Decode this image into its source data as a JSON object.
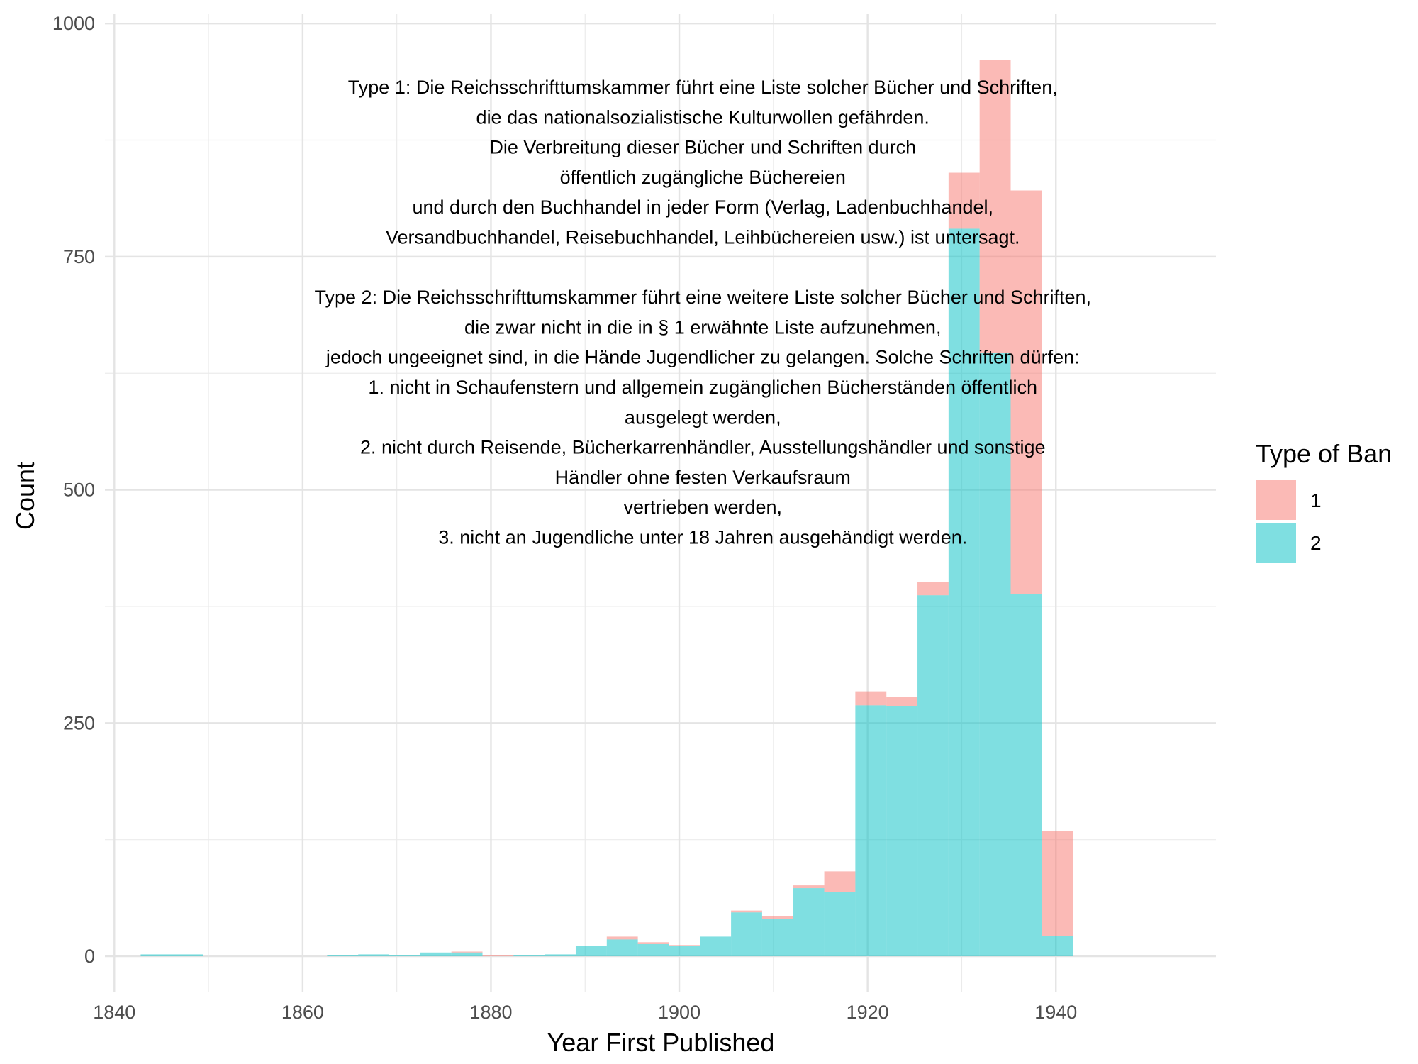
{
  "chart_data": {
    "type": "bar",
    "stacked": true,
    "xlabel": "Year First Published",
    "ylabel": "Count",
    "xlim": [
      1839,
      1957
    ],
    "ylim": [
      -38,
      1010
    ],
    "x_ticks": [
      1840,
      1860,
      1880,
      1900,
      1920,
      1940
    ],
    "y_ticks": [
      0,
      250,
      500,
      750,
      1000
    ],
    "grid": true,
    "legend": {
      "title": "Type of Ban",
      "position": "right",
      "entries": [
        {
          "label": "1",
          "color": "#F8766D"
        },
        {
          "label": "2",
          "color": "#00BFC4"
        }
      ]
    },
    "bin_width": 3.3,
    "bins": [
      {
        "start": 1842.8,
        "end": 1846.1,
        "type2": 2,
        "type1": 0
      },
      {
        "start": 1846.1,
        "end": 1849.4,
        "type2": 2,
        "type1": 0
      },
      {
        "start": 1862.6,
        "end": 1865.9,
        "type2": 1,
        "type1": 0
      },
      {
        "start": 1865.9,
        "end": 1869.2,
        "type2": 2,
        "type1": 0
      },
      {
        "start": 1869.2,
        "end": 1872.5,
        "type2": 1,
        "type1": 0
      },
      {
        "start": 1872.5,
        "end": 1875.8,
        "type2": 4,
        "type1": 0
      },
      {
        "start": 1875.8,
        "end": 1879.1,
        "type2": 4,
        "type1": 1
      },
      {
        "start": 1879.1,
        "end": 1882.4,
        "type2": 0,
        "type1": 1
      },
      {
        "start": 1882.4,
        "end": 1885.7,
        "type2": 1,
        "type1": 0
      },
      {
        "start": 1885.7,
        "end": 1889.0,
        "type2": 2,
        "type1": 0
      },
      {
        "start": 1889.0,
        "end": 1892.3,
        "type2": 11,
        "type1": 0
      },
      {
        "start": 1892.3,
        "end": 1895.6,
        "type2": 18,
        "type1": 3
      },
      {
        "start": 1895.6,
        "end": 1898.9,
        "type2": 13,
        "type1": 2
      },
      {
        "start": 1898.9,
        "end": 1902.2,
        "type2": 11,
        "type1": 1
      },
      {
        "start": 1902.2,
        "end": 1905.5,
        "type2": 21,
        "type1": 0
      },
      {
        "start": 1905.5,
        "end": 1908.8,
        "type2": 47,
        "type1": 2
      },
      {
        "start": 1908.8,
        "end": 1912.1,
        "type2": 40,
        "type1": 3
      },
      {
        "start": 1912.1,
        "end": 1915.4,
        "type2": 73,
        "type1": 3
      },
      {
        "start": 1915.4,
        "end": 1918.7,
        "type2": 69,
        "type1": 22
      },
      {
        "start": 1918.7,
        "end": 1922.0,
        "type2": 269,
        "type1": 15
      },
      {
        "start": 1922.0,
        "end": 1925.3,
        "type2": 268,
        "type1": 10
      },
      {
        "start": 1925.3,
        "end": 1928.6,
        "type2": 387,
        "type1": 14
      },
      {
        "start": 1928.6,
        "end": 1931.9,
        "type2": 780,
        "type1": 60
      },
      {
        "start": 1931.9,
        "end": 1935.2,
        "type2": 647,
        "type1": 314
      },
      {
        "start": 1935.2,
        "end": 1938.5,
        "type2": 388,
        "type1": 433
      },
      {
        "start": 1938.5,
        "end": 1941.8,
        "type2": 22,
        "type1": 112
      }
    ],
    "annotation": [
      "Type 1: Die Reichsschrifttumskammer führt eine Liste solcher Bücher und Schriften,",
      "die das nationalsozialistische Kulturwollen gefährden.",
      "Die Verbreitung dieser Bücher und Schriften durch",
      "öffentlich zugängliche Büchereien",
      "und durch den Buchhandel in jeder Form (Verlag, Ladenbuchhandel,",
      "Versandbuchhandel, Reisebuchhandel, Leihbüchereien usw.) ist untersagt.",
      "",
      "Type 2: Die Reichsschrifttumskammer führt eine weitere Liste solcher Bücher und Schriften,",
      "die zwar nicht in die in § 1 erwähnte Liste aufzunehmen,",
      "jedoch ungeeignet sind, in die Hände Jugendlicher zu gelangen. Solche Schriften dürfen:",
      "1. nicht in Schaufenstern und allgemein zugänglichen Bücherständen öffentlich",
      "ausgelegt werden,",
      "2. nicht durch Reisende, Bücherkarrenhändler, Ausstellungshändler und sonstige",
      "Händler ohne festen Verkaufsraum",
      "vertrieben werden,",
      "3. nicht an Jugendliche unter 18 Jahren ausgehändigt werden."
    ],
    "annotation_anchor": {
      "x": 1902.5,
      "y": 845
    }
  }
}
